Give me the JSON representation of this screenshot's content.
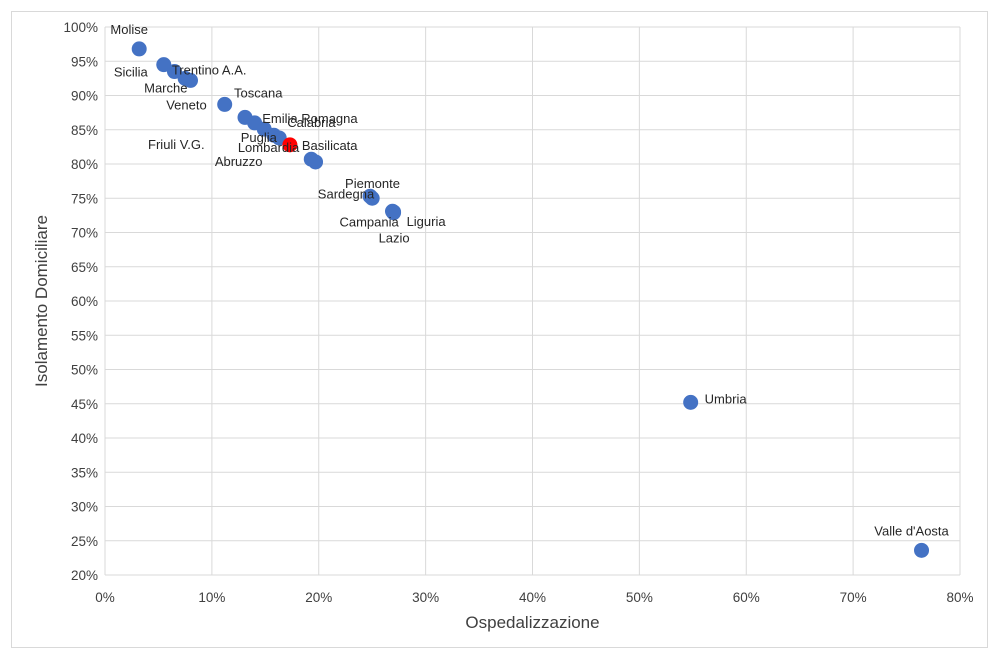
{
  "chart_data": {
    "type": "scatter",
    "xlabel": "Ospedalizzazione",
    "ylabel": "Isolamento Domiciliare",
    "xlim": [
      0,
      80
    ],
    "ylim": [
      20,
      100
    ],
    "x_ticks": [
      0,
      10,
      20,
      30,
      40,
      50,
      60,
      70,
      80
    ],
    "y_ticks": [
      20,
      25,
      30,
      35,
      40,
      45,
      50,
      55,
      60,
      65,
      70,
      75,
      80,
      85,
      90,
      95,
      100
    ],
    "tick_format": "percent",
    "grid": true,
    "point_color": "#4472c4",
    "highlight_color": "#ff0000",
    "points": [
      {
        "label": "Molise",
        "x": 3.2,
        "y": 96.8
      },
      {
        "label": "Sicilia",
        "x": 5.5,
        "y": 94.5
      },
      {
        "label": "Marche",
        "x": 6.5,
        "y": 93.5
      },
      {
        "label": "Trentino A.A.",
        "x": 7.5,
        "y": 92.5
      },
      {
        "label": "",
        "x": 8.0,
        "y": 92.2
      },
      {
        "label": "Veneto",
        "x": 11.2,
        "y": 88.7
      },
      {
        "label": "Toscana",
        "x": 13.1,
        "y": 86.8
      },
      {
        "label": "Friuli V.G.",
        "x": 14.0,
        "y": 86.0
      },
      {
        "label": "Emilia Romagna",
        "x": 14.9,
        "y": 85.1
      },
      {
        "label": "Puglia",
        "x": 15.8,
        "y": 84.2
      },
      {
        "label": "Calabria",
        "x": 16.3,
        "y": 83.8
      },
      {
        "label": "Basilicata",
        "x": 17.3,
        "y": 82.8,
        "highlight": true
      },
      {
        "label": "Lombardia",
        "x": 19.3,
        "y": 80.7
      },
      {
        "label": "Abruzzo",
        "x": 19.7,
        "y": 80.3
      },
      {
        "label": "Piemonte",
        "x": 24.8,
        "y": 75.3
      },
      {
        "label": "Sardegna",
        "x": 25.0,
        "y": 75.0
      },
      {
        "label": "Campania",
        "x": 26.9,
        "y": 73.1
      },
      {
        "label": "Liguria",
        "x": 27.0,
        "y": 73.0
      },
      {
        "label": "Lazio",
        "x": 27.0,
        "y": 72.9
      },
      {
        "label": "Umbria",
        "x": 54.8,
        "y": 45.2
      },
      {
        "label": "Valle d'Aosta",
        "x": 76.4,
        "y": 23.6
      }
    ]
  }
}
